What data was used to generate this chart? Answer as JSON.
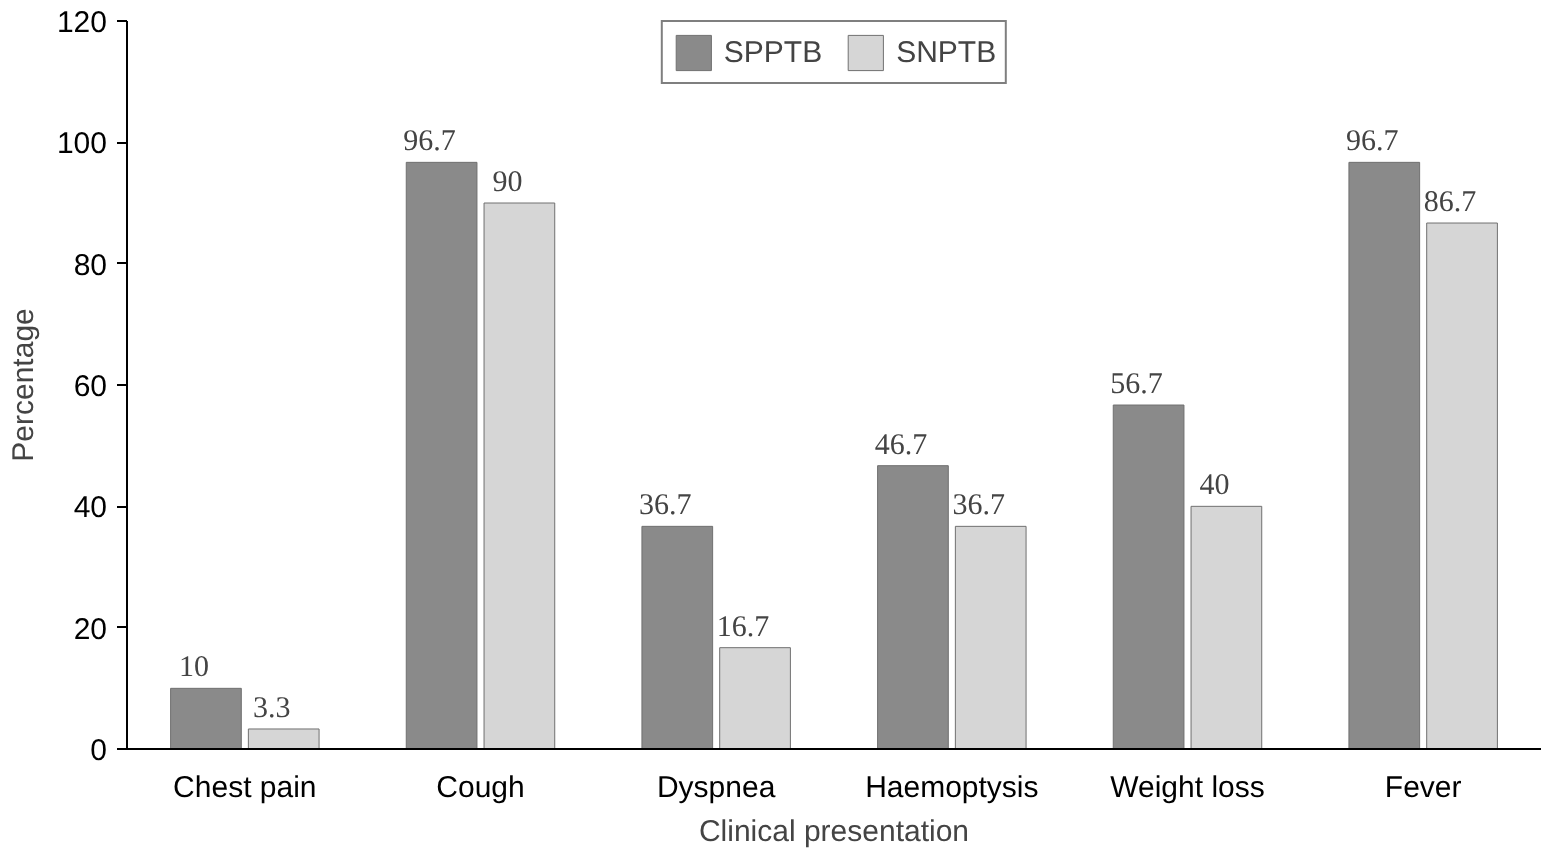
{
  "chart_data": {
    "type": "bar",
    "xlabel": "Clinical presentation",
    "ylabel": "Percentage",
    "categories": [
      "Chest pain",
      "Cough",
      "Dyspnea",
      "Haemoptysis",
      "Weight loss",
      "Fever"
    ],
    "series": [
      {
        "name": "SPPTB",
        "color": "#8a8a8a",
        "values": [
          10,
          96.7,
          36.7,
          46.7,
          56.7,
          96.7
        ]
      },
      {
        "name": "SNPTB",
        "color": "#d6d6d6",
        "values": [
          3.3,
          90,
          16.7,
          36.7,
          40,
          86.7
        ]
      }
    ],
    "ylim": [
      0,
      120
    ],
    "yticks": [
      0,
      20,
      40,
      60,
      80,
      100,
      120
    ],
    "data_labels": true,
    "legend": "top"
  }
}
